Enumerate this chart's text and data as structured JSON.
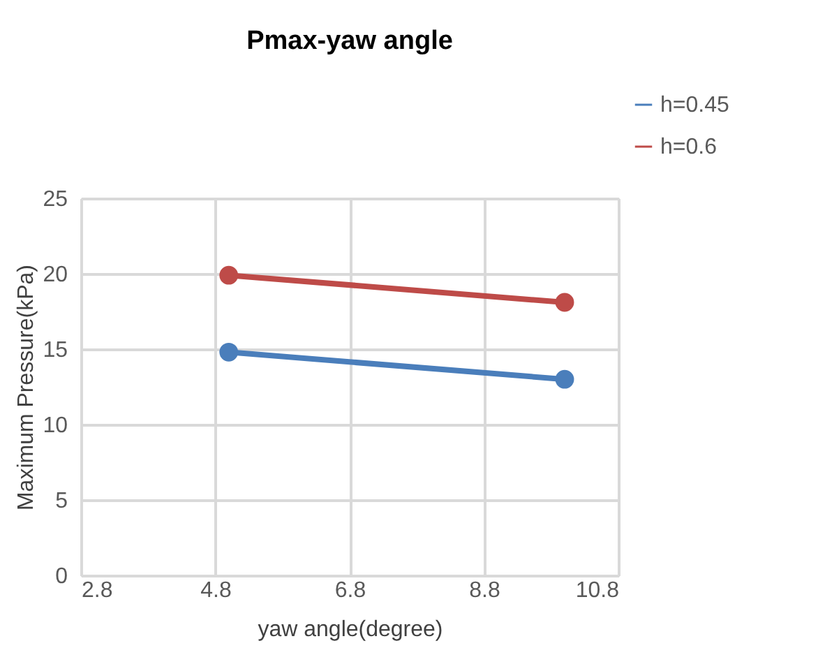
{
  "chart_data": {
    "type": "line",
    "title": "Pmax-yaw angle",
    "xlabel": "yaw angle(degree)",
    "ylabel": "Maximum Pressure(kPa)",
    "x": [
      5,
      10
    ],
    "series": [
      {
        "name": "h=0.45",
        "color": "#4a7ebb",
        "values": [
          14.8,
          13.0
        ]
      },
      {
        "name": "h=0.6",
        "color": "#be4b48",
        "values": [
          19.9,
          18.1
        ]
      }
    ],
    "xlim": [
      2.8,
      10.8
    ],
    "xticks": [
      2.8,
      4.8,
      6.8,
      8.8,
      10.8
    ],
    "ylim": [
      0,
      25
    ],
    "yticks": [
      0,
      5,
      10,
      15,
      20,
      25
    ],
    "grid": true,
    "legend": "top right",
    "marker": "circle",
    "line_style": "solid"
  }
}
